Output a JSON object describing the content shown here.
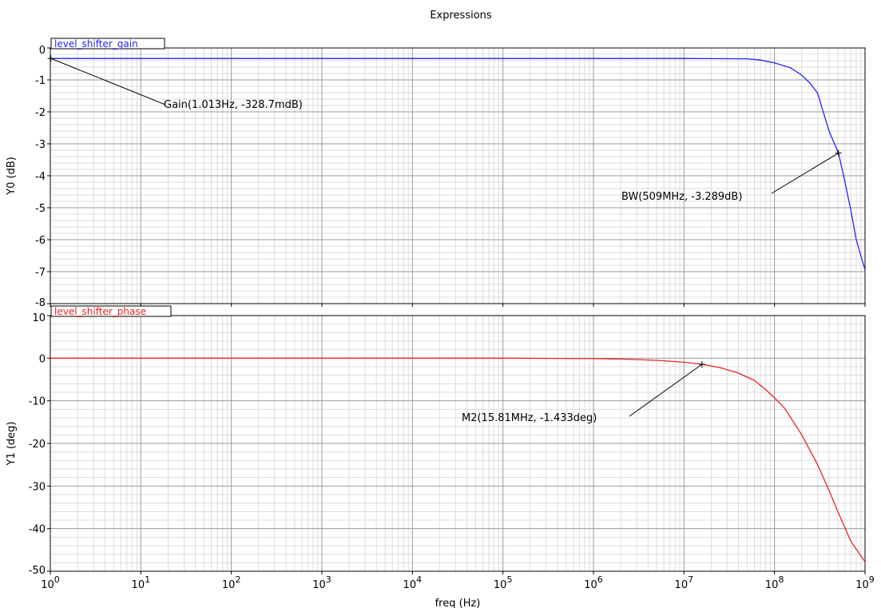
{
  "window_title": "Expressions",
  "chart_data": [
    {
      "type": "line",
      "xscale": "log",
      "xlim": [
        1,
        1000000000
      ],
      "ylim": [
        -8,
        0
      ],
      "yticks": [
        0,
        -1,
        -2,
        -3,
        -4,
        -5,
        -6,
        -7,
        -8
      ],
      "ylabel": "Y0 (dB)",
      "grid": true,
      "series": [
        {
          "name": "level_shifter_gain",
          "color": "#2222ff",
          "x": [
            1,
            10,
            100,
            1000,
            10000,
            100000,
            1000000,
            10000000,
            50000000,
            70000000,
            100000000,
            150000000,
            200000000,
            250000000,
            300000000,
            400000000,
            509000000,
            600000000,
            700000000,
            800000000,
            1000000000
          ],
          "y": [
            -0.329,
            -0.329,
            -0.329,
            -0.329,
            -0.329,
            -0.329,
            -0.329,
            -0.33,
            -0.34,
            -0.38,
            -0.47,
            -0.62,
            -0.85,
            -1.12,
            -1.42,
            -2.6,
            -3.289,
            -4.2,
            -5.1,
            -6.0,
            -6.95
          ]
        }
      ],
      "markers": [
        {
          "label": "Gain(1.013Hz, -328.7mdB)",
          "x": 1.013,
          "y": -0.3287
        },
        {
          "label": "BW(509MHz, -3.289dB)",
          "x": 509000000,
          "y": -3.289
        }
      ]
    },
    {
      "type": "line",
      "xscale": "log",
      "xlim": [
        1,
        1000000000
      ],
      "ylim": [
        -50,
        10
      ],
      "yticks": [
        10,
        0,
        -10,
        -20,
        -30,
        -40,
        -50
      ],
      "ylabel": "Y1 (deg)",
      "xlabel": "freq (Hz)",
      "grid": true,
      "series": [
        {
          "name": "level_shifter_phase",
          "color": "#ee2222",
          "x": [
            1,
            10,
            100,
            1000,
            10000,
            100000,
            1000000,
            2000000,
            5000000,
            10000000,
            15810000,
            25000000,
            40000000,
            60000000,
            80000000,
            100000000,
            130000000,
            200000000,
            300000000,
            400000000,
            500000000,
            700000000,
            1000000000
          ],
          "y": [
            0,
            0,
            0,
            0,
            0,
            0,
            -0.1,
            -0.2,
            -0.5,
            -0.95,
            -1.433,
            -2.2,
            -3.5,
            -5.2,
            -7.4,
            -9.3,
            -11.8,
            -18.0,
            -25.0,
            -31.0,
            -36.0,
            -43.0,
            -47.8
          ]
        }
      ],
      "markers": [
        {
          "label": "M2(15.81MHz, -1.433deg)",
          "x": 15810000,
          "y": -1.433
        }
      ]
    }
  ],
  "x_tick_labels": [
    {
      "base": "10",
      "exp": "0"
    },
    {
      "base": "10",
      "exp": "1"
    },
    {
      "base": "10",
      "exp": "2"
    },
    {
      "base": "10",
      "exp": "3"
    },
    {
      "base": "10",
      "exp": "4"
    },
    {
      "base": "10",
      "exp": "5"
    },
    {
      "base": "10",
      "exp": "6"
    },
    {
      "base": "10",
      "exp": "7"
    },
    {
      "base": "10",
      "exp": "8"
    },
    {
      "base": "10",
      "exp": "9"
    }
  ]
}
